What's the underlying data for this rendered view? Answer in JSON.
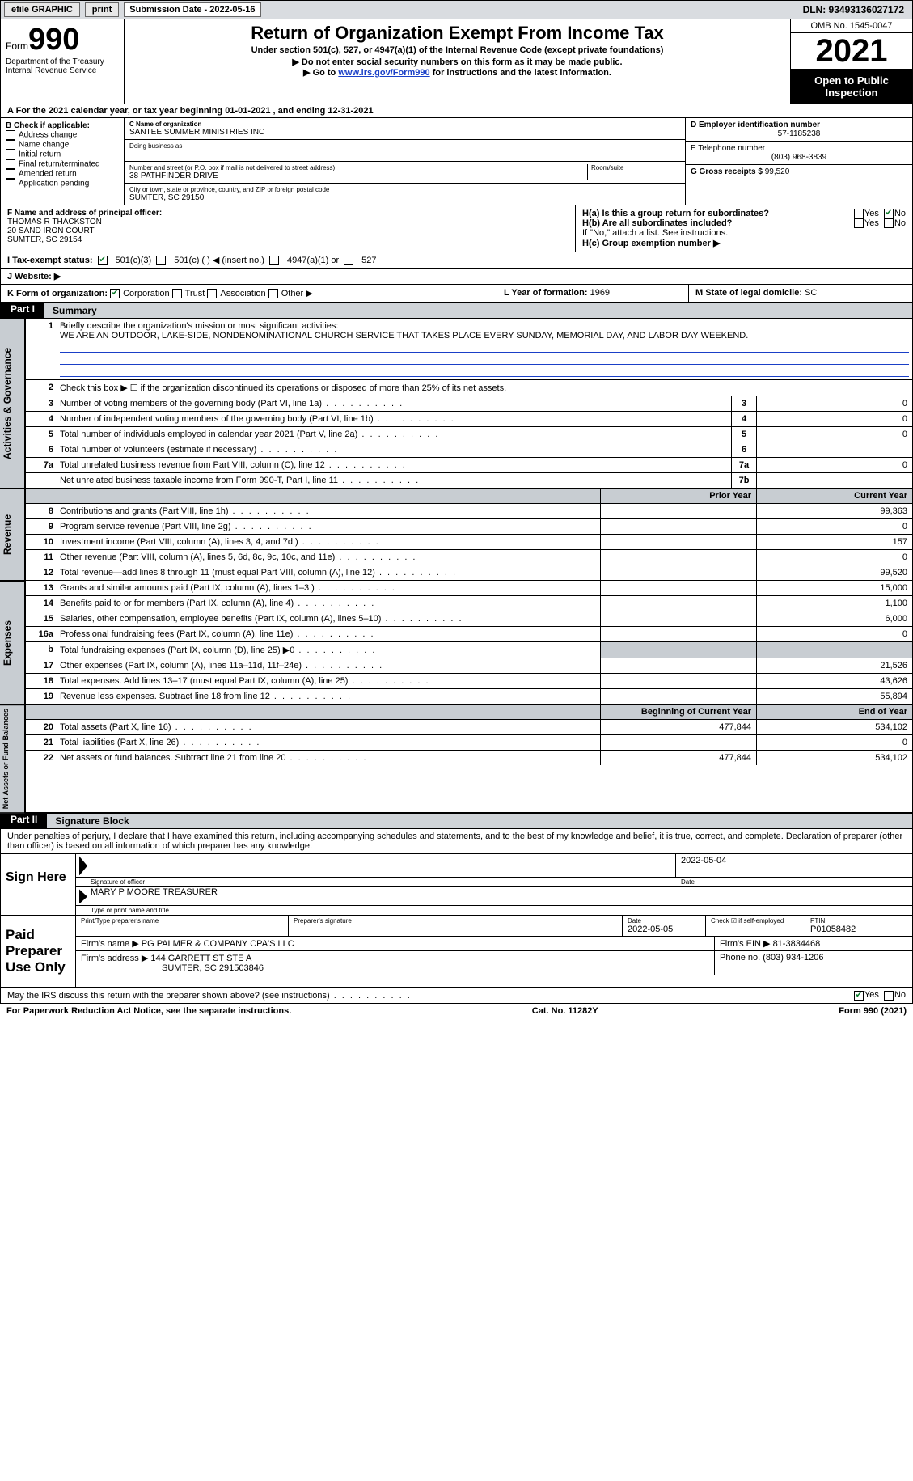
{
  "topbar": {
    "efile": "efile GRAPHIC",
    "print": "print",
    "sub_label": "Submission Date - 2022-05-16",
    "dln": "DLN: 93493136027172"
  },
  "header": {
    "form_word": "Form",
    "form_num": "990",
    "dept": "Department of the Treasury",
    "irs": "Internal Revenue Service",
    "title": "Return of Organization Exempt From Income Tax",
    "sub": "Under section 501(c), 527, or 4947(a)(1) of the Internal Revenue Code (except private foundations)",
    "note1": "▶ Do not enter social security numbers on this form as it may be made public.",
    "note2_pre": "▶ Go to ",
    "note2_link": "www.irs.gov/Form990",
    "note2_post": " for instructions and the latest information.",
    "omb": "OMB No. 1545-0047",
    "year": "2021",
    "inspect": "Open to Public Inspection"
  },
  "period": "A For the 2021 calendar year, or tax year beginning 01-01-2021   , and ending 12-31-2021",
  "sectionB": {
    "label": "B Check if applicable:",
    "items": [
      "Address change",
      "Name change",
      "Initial return",
      "Final return/terminated",
      "Amended return",
      "Application pending"
    ]
  },
  "sectionC": {
    "name_lbl": "C Name of organization",
    "name": "SANTEE SUMMER MINISTRIES INC",
    "dba_lbl": "Doing business as",
    "addr_lbl": "Number and street (or P.O. box if mail is not delivered to street address)",
    "room_lbl": "Room/suite",
    "addr": "38 PATHFINDER DRIVE",
    "city_lbl": "City or town, state or province, country, and ZIP or foreign postal code",
    "city": "SUMTER, SC  29150"
  },
  "sectionD": {
    "lbl": "D Employer identification number",
    "val": "57-1185238"
  },
  "sectionE": {
    "lbl": "E Telephone number",
    "val": "(803) 968-3839"
  },
  "sectionG": {
    "lbl": "G Gross receipts $",
    "val": "99,520"
  },
  "sectionF": {
    "lbl": "F Name and address of principal officer:",
    "name": "THOMAS R THACKSTON",
    "line2": "20 SAND IRON COURT",
    "line3": "SUMTER, SC  29154"
  },
  "sectionH": {
    "a_lbl": "H(a)  Is this a group return for subordinates?",
    "b_lbl": "H(b)  Are all subordinates included?",
    "b_note": "If \"No,\" attach a list. See instructions.",
    "c_lbl": "H(c)  Group exemption number ▶",
    "yes": "Yes",
    "no": "No"
  },
  "sectionI": {
    "lbl": "I   Tax-exempt status:",
    "opts": [
      "501(c)(3)",
      "501(c) (  ) ◀ (insert no.)",
      "4947(a)(1) or",
      "527"
    ]
  },
  "sectionJ": {
    "lbl": "J   Website: ▶"
  },
  "sectionK": {
    "lbl": "K Form of organization:",
    "opts": [
      "Corporation",
      "Trust",
      "Association",
      "Other ▶"
    ]
  },
  "sectionL": {
    "lbl": "L Year of formation:",
    "val": "1969"
  },
  "sectionM": {
    "lbl": "M State of legal domicile:",
    "val": "SC"
  },
  "part1": {
    "label": "Part I",
    "title": "Summary",
    "vtab1": "Activities & Governance",
    "vtab2": "Revenue",
    "vtab3": "Expenses",
    "vtab4": "Net Assets or Fund Balances",
    "l1_lbl": "Briefly describe the organization's mission or most significant activities:",
    "l1_txt": "WE ARE AN OUTDOOR, LAKE-SIDE, NONDENOMINATIONAL CHURCH SERVICE THAT TAKES PLACE EVERY SUNDAY, MEMORIAL DAY, AND LABOR DAY WEEKEND.",
    "l2": "Check this box ▶ ☐ if the organization discontinued its operations or disposed of more than 25% of its net assets.",
    "rows_a": [
      {
        "n": "3",
        "d": "Number of voting members of the governing body (Part VI, line 1a)",
        "b": "3",
        "v": "0"
      },
      {
        "n": "4",
        "d": "Number of independent voting members of the governing body (Part VI, line 1b)",
        "b": "4",
        "v": "0"
      },
      {
        "n": "5",
        "d": "Total number of individuals employed in calendar year 2021 (Part V, line 2a)",
        "b": "5",
        "v": "0"
      },
      {
        "n": "6",
        "d": "Total number of volunteers (estimate if necessary)",
        "b": "6",
        "v": ""
      },
      {
        "n": "7a",
        "d": "Total unrelated business revenue from Part VIII, column (C), line 12",
        "b": "7a",
        "v": "0"
      },
      {
        "n": "",
        "d": "Net unrelated business taxable income from Form 990-T, Part I, line 11",
        "b": "7b",
        "v": ""
      }
    ],
    "hdr_py": "Prior Year",
    "hdr_cy": "Current Year",
    "rows_r": [
      {
        "n": "8",
        "d": "Contributions and grants (Part VIII, line 1h)",
        "py": "",
        "cy": "99,363"
      },
      {
        "n": "9",
        "d": "Program service revenue (Part VIII, line 2g)",
        "py": "",
        "cy": "0"
      },
      {
        "n": "10",
        "d": "Investment income (Part VIII, column (A), lines 3, 4, and 7d )",
        "py": "",
        "cy": "157"
      },
      {
        "n": "11",
        "d": "Other revenue (Part VIII, column (A), lines 5, 6d, 8c, 9c, 10c, and 11e)",
        "py": "",
        "cy": "0"
      },
      {
        "n": "12",
        "d": "Total revenue—add lines 8 through 11 (must equal Part VIII, column (A), line 12)",
        "py": "",
        "cy": "99,520"
      }
    ],
    "rows_e": [
      {
        "n": "13",
        "d": "Grants and similar amounts paid (Part IX, column (A), lines 1–3 )",
        "py": "",
        "cy": "15,000"
      },
      {
        "n": "14",
        "d": "Benefits paid to or for members (Part IX, column (A), line 4)",
        "py": "",
        "cy": "1,100"
      },
      {
        "n": "15",
        "d": "Salaries, other compensation, employee benefits (Part IX, column (A), lines 5–10)",
        "py": "",
        "cy": "6,000"
      },
      {
        "n": "16a",
        "d": "Professional fundraising fees (Part IX, column (A), line 11e)",
        "py": "",
        "cy": "0"
      },
      {
        "n": "b",
        "d": "Total fundraising expenses (Part IX, column (D), line 25) ▶0",
        "py": "shade",
        "cy": "shade"
      },
      {
        "n": "17",
        "d": "Other expenses (Part IX, column (A), lines 11a–11d, 11f–24e)",
        "py": "",
        "cy": "21,526"
      },
      {
        "n": "18",
        "d": "Total expenses. Add lines 13–17 (must equal Part IX, column (A), line 25)",
        "py": "",
        "cy": "43,626"
      },
      {
        "n": "19",
        "d": "Revenue less expenses. Subtract line 18 from line 12",
        "py": "",
        "cy": "55,894"
      }
    ],
    "hdr_by": "Beginning of Current Year",
    "hdr_ey": "End of Year",
    "rows_n": [
      {
        "n": "20",
        "d": "Total assets (Part X, line 16)",
        "py": "477,844",
        "cy": "534,102"
      },
      {
        "n": "21",
        "d": "Total liabilities (Part X, line 26)",
        "py": "",
        "cy": "0"
      },
      {
        "n": "22",
        "d": "Net assets or fund balances. Subtract line 21 from line 20",
        "py": "477,844",
        "cy": "534,102"
      }
    ]
  },
  "part2": {
    "label": "Part II",
    "title": "Signature Block",
    "decl": "Under penalties of perjury, I declare that I have examined this return, including accompanying schedules and statements, and to the best of my knowledge and belief, it is true, correct, and complete. Declaration of preparer (other than officer) is based on all information of which preparer has any knowledge."
  },
  "sign": {
    "lbl": "Sign Here",
    "sig_lbl": "Signature of officer",
    "date_lbl": "Date",
    "date": "2022-05-04",
    "name": "MARY P MOORE  TREASURER",
    "name_lbl": "Type or print name and title"
  },
  "paid": {
    "lbl": "Paid Preparer Use Only",
    "h1": "Print/Type preparer's name",
    "h2": "Preparer's signature",
    "h3": "Date",
    "h3v": "2022-05-05",
    "h4": "Check ☑ if self-employed",
    "h5": "PTIN",
    "h5v": "P01058482",
    "firm_lbl": "Firm's name    ▶",
    "firm": "PG PALMER & COMPANY CPA'S LLC",
    "ein_lbl": "Firm's EIN ▶",
    "ein": "81-3834468",
    "addr_lbl": "Firm's address ▶",
    "addr1": "144 GARRETT ST STE A",
    "addr2": "SUMTER, SC  291503846",
    "ph_lbl": "Phone no.",
    "ph": "(803) 934-1206"
  },
  "discuss": {
    "q": "May the IRS discuss this return with the preparer shown above? (see instructions)",
    "yes": "Yes",
    "no": "No"
  },
  "footer": {
    "l": "For Paperwork Reduction Act Notice, see the separate instructions.",
    "c": "Cat. No. 11282Y",
    "r": "Form 990 (2021)"
  }
}
